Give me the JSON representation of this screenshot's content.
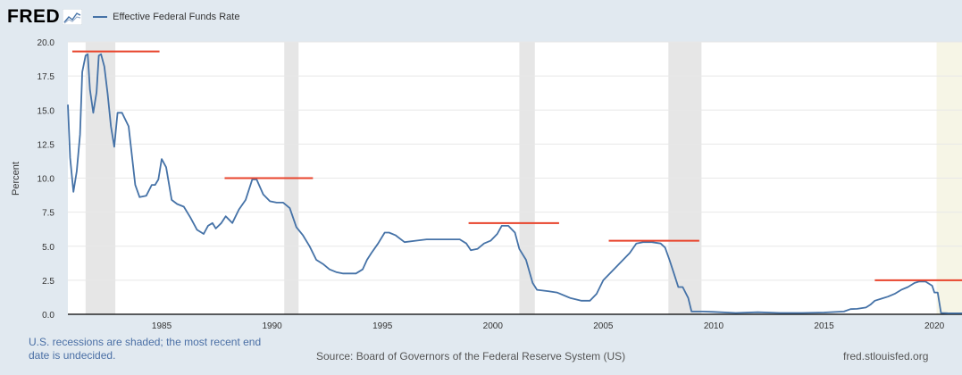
{
  "logo": {
    "text": "FRED"
  },
  "legend": {
    "label": "Effective Federal Funds Rate",
    "color": "#4572a7"
  },
  "footer": {
    "recession_note": "U.S. recessions are shaded; the most recent end date is undecided.",
    "source": "Source: Board of Governors of the Federal Reserve System (US)",
    "site": "fred.stlouisfed.org"
  },
  "chart_data": {
    "type": "line",
    "title": "",
    "xlabel": "",
    "ylabel": "Percent",
    "xlim": [
      1980.75,
      2021.25
    ],
    "ylim": [
      0,
      20
    ],
    "x_ticks": [
      1985,
      1990,
      1995,
      2000,
      2005,
      2010,
      2015,
      2020
    ],
    "y_ticks": [
      "0.0",
      "2.5",
      "5.0",
      "7.5",
      "10.0",
      "12.5",
      "15.0",
      "17.5",
      "20.0"
    ],
    "grid": true,
    "colors": {
      "series": "#4572a7",
      "recession": "#e6e6e6",
      "undecided_recession": "#f6f5e6",
      "annotation": "#e8432b"
    },
    "recessions": [
      [
        1981.55,
        1982.9
      ],
      [
        1990.55,
        1991.2
      ],
      [
        2001.2,
        2001.9
      ],
      [
        2007.95,
        2009.45
      ],
      [
        2020.1,
        2021.25
      ]
    ],
    "recession_note_period": [
      2020.1,
      2021.25
    ],
    "annotation_lines": [
      {
        "x": [
          1980.95,
          1984.9
        ],
        "y": 19.3
      },
      {
        "x": [
          1987.85,
          1991.85
        ],
        "y": 10.0
      },
      {
        "x": [
          1998.9,
          2003.0
        ],
        "y": 6.7
      },
      {
        "x": [
          2005.25,
          2009.35
        ],
        "y": 5.4
      },
      {
        "x": [
          2017.3,
          2021.25
        ],
        "y": 2.5
      }
    ],
    "series": [
      {
        "x": [
          1980.75,
          1980.85,
          1981.0,
          1981.15,
          1981.3,
          1981.4,
          1981.55,
          1981.65,
          1981.75,
          1981.9,
          1982.05,
          1982.15,
          1982.25,
          1982.4,
          1982.55,
          1982.7,
          1982.85,
          1983.0,
          1983.2,
          1983.5,
          1983.8,
          1984.0,
          1984.3,
          1984.55,
          1984.7,
          1984.85,
          1985.0,
          1985.2,
          1985.45,
          1985.7,
          1986.0,
          1986.3,
          1986.6,
          1986.9,
          1987.1,
          1987.3,
          1987.45,
          1987.7,
          1987.9,
          1988.2,
          1988.5,
          1988.8,
          1989.1,
          1989.3,
          1989.6,
          1989.9,
          1990.2,
          1990.5,
          1990.8,
          1991.1,
          1991.4,
          1991.7,
          1992.0,
          1992.3,
          1992.6,
          1992.9,
          1993.2,
          1993.5,
          1993.8,
          1994.1,
          1994.3,
          1994.5,
          1994.8,
          1995.1,
          1995.3,
          1995.6,
          1996.0,
          1996.5,
          1997.0,
          1997.5,
          1998.0,
          1998.5,
          1998.8,
          1999.0,
          1999.3,
          1999.6,
          1999.9,
          2000.2,
          2000.4,
          2000.7,
          2001.0,
          2001.2,
          2001.5,
          2001.8,
          2002.0,
          2002.5,
          2002.9,
          2003.5,
          2004.0,
          2004.4,
          2004.7,
          2005.0,
          2005.3,
          2005.6,
          2005.9,
          2006.2,
          2006.5,
          2006.8,
          2007.2,
          2007.6,
          2007.8,
          2008.0,
          2008.2,
          2008.4,
          2008.6,
          2008.85,
          2009.0,
          2009.5,
          2010.0,
          2011.0,
          2012.0,
          2013.0,
          2014.0,
          2015.0,
          2015.9,
          2016.2,
          2016.5,
          2016.9,
          2017.1,
          2017.3,
          2017.6,
          2017.9,
          2018.2,
          2018.5,
          2018.8,
          2019.1,
          2019.3,
          2019.6,
          2019.9,
          2020.0,
          2020.15,
          2020.3,
          2020.6,
          2021.0,
          2021.25
        ],
        "y": [
          15.4,
          11.5,
          9.0,
          10.5,
          13.2,
          17.8,
          19.0,
          19.1,
          16.5,
          14.8,
          16.3,
          19.0,
          19.1,
          18.2,
          16.2,
          13.8,
          12.3,
          14.8,
          14.8,
          13.8,
          9.5,
          8.6,
          8.7,
          9.5,
          9.5,
          9.9,
          11.4,
          10.8,
          8.4,
          8.1,
          7.9,
          7.1,
          6.2,
          5.9,
          6.5,
          6.7,
          6.3,
          6.7,
          7.2,
          6.7,
          7.7,
          8.4,
          9.9,
          9.9,
          8.8,
          8.3,
          8.2,
          8.2,
          7.8,
          6.4,
          5.8,
          5.0,
          4.0,
          3.7,
          3.3,
          3.1,
          3.0,
          3.0,
          3.0,
          3.3,
          4.0,
          4.5,
          5.2,
          6.0,
          6.0,
          5.8,
          5.3,
          5.4,
          5.5,
          5.5,
          5.5,
          5.5,
          5.2,
          4.7,
          4.8,
          5.2,
          5.4,
          5.9,
          6.5,
          6.5,
          6.0,
          4.8,
          4.0,
          2.3,
          1.8,
          1.7,
          1.6,
          1.2,
          1.0,
          1.0,
          1.5,
          2.5,
          3.0,
          3.5,
          4.0,
          4.5,
          5.2,
          5.3,
          5.3,
          5.2,
          4.9,
          4.0,
          3.0,
          2.0,
          2.0,
          1.2,
          0.2,
          0.2,
          0.18,
          0.1,
          0.15,
          0.1,
          0.1,
          0.13,
          0.2,
          0.38,
          0.4,
          0.5,
          0.7,
          1.0,
          1.15,
          1.3,
          1.5,
          1.8,
          2.0,
          2.3,
          2.4,
          2.4,
          2.1,
          1.6,
          1.6,
          0.1,
          0.08,
          0.07,
          0.07
        ]
      }
    ]
  }
}
